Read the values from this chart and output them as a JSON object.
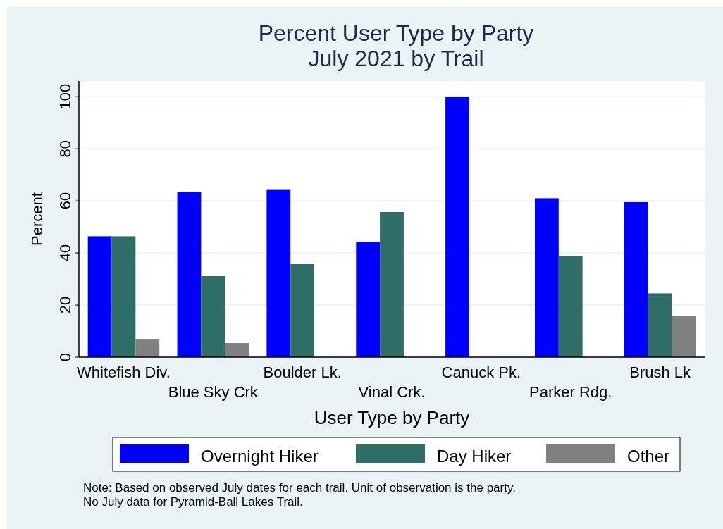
{
  "chart_data": {
    "type": "bar",
    "title": "Percent User Type by Party\nJuly 2021 by Trail",
    "xlabel": "User Type by Party",
    "ylabel": "Percent",
    "categories": [
      "Whitefish Div.",
      "Blue Sky Crk",
      "Boulder Lk.",
      "Vinal Crk.",
      "Canuck Pk.",
      "Parker Rdg.",
      "Brush Lk"
    ],
    "series": [
      {
        "name": "Overnight Hiker",
        "color": "#0000ff",
        "values": [
          46.4,
          63.4,
          64.2,
          44.2,
          100,
          61.0,
          59.5
        ]
      },
      {
        "name": "Day Hiker",
        "color": "#2e6e66",
        "values": [
          46.4,
          31.1,
          35.7,
          55.7,
          0,
          38.7,
          24.5
        ]
      },
      {
        "name": "Other",
        "color": "#808080",
        "values": [
          7.0,
          5.4,
          0,
          0,
          0,
          0,
          15.8
        ]
      }
    ],
    "ylim": [
      0,
      106
    ],
    "yticks": [
      0,
      20,
      40,
      60,
      80,
      100
    ],
    "grid": "y",
    "legend": "bottom",
    "annotations": [
      "Note: Based on observed July dates for each trail. Unit of observation is the party.",
      "No July data for Pyramid-Ball Lakes Trail."
    ]
  }
}
